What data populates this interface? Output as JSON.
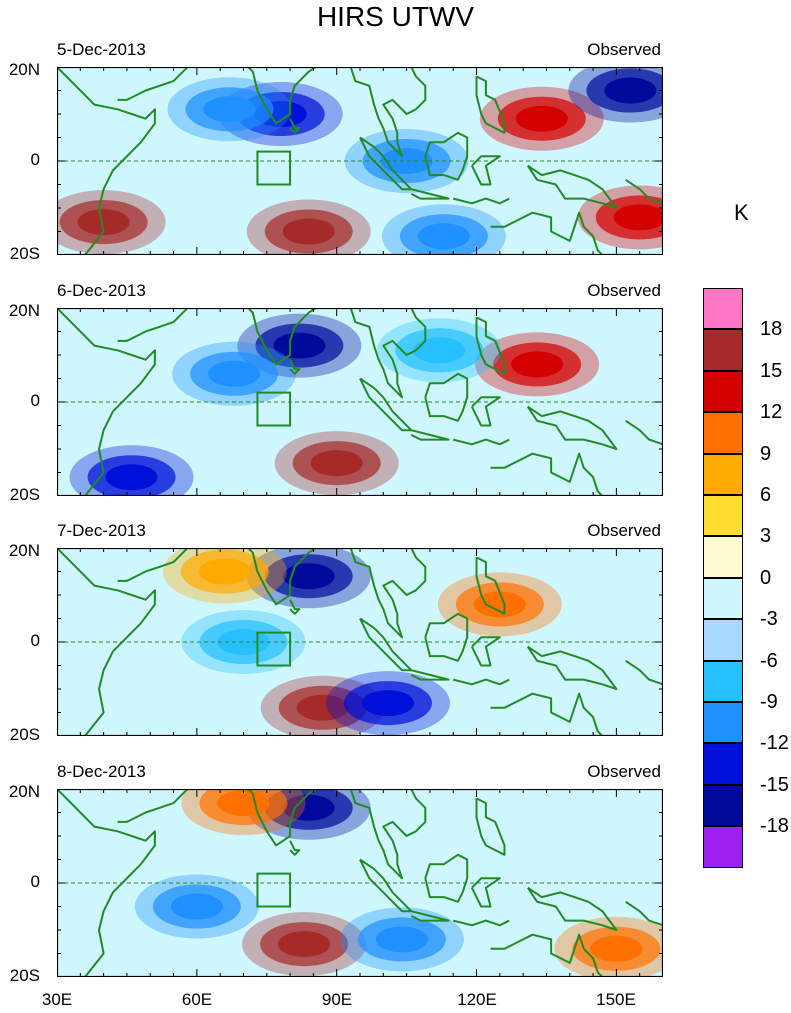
{
  "figure": {
    "title": "HIRS UTWV",
    "unit": "K"
  },
  "chart_data": {
    "type": "heatmap",
    "title": "HIRS UTWV",
    "colorbar_unit": "K",
    "x_axis": {
      "ticks": [
        "30E",
        "60E",
        "90E",
        "120E",
        "150E"
      ],
      "range_deg": [
        30,
        160
      ]
    },
    "y_axis": {
      "ticks": [
        "20N",
        "0",
        "20S"
      ],
      "range_deg": [
        -20,
        20
      ]
    },
    "colorbar": {
      "levels": [
        "18",
        "15",
        "12",
        "9",
        "6",
        "3",
        "0",
        "-3",
        "-6",
        "-9",
        "-12",
        "-15",
        "-18"
      ],
      "colors": [
        "#ff77c4",
        "#a52a2a",
        "#d50000",
        "#ff7000",
        "#ffaa00",
        "#ffde30",
        "#fffbd0",
        "#cff7ff",
        "#a8d8ff",
        "#26bfff",
        "#1e90ff",
        "#0010d8",
        "#000a9a",
        "#a020f0"
      ],
      "value_bins": [
        ">18",
        "15..18",
        "12..15",
        "9..12",
        "6..9",
        "3..6",
        "0..3",
        "-3..0",
        "-6..-3",
        "-9..-6",
        "-12..-9",
        "-15..-12",
        "-18..-15",
        "<-18"
      ]
    },
    "panels": [
      {
        "date": "5-Dec-2013",
        "status": "Observed",
        "features": [
          {
            "lon": 84,
            "lat": -15,
            "level": "15..18"
          },
          {
            "lon": 40,
            "lat": -13,
            "level": "15..18"
          },
          {
            "lon": 134,
            "lat": 9,
            "level": "12..15"
          },
          {
            "lon": 155,
            "lat": -12,
            "level": "12..15"
          },
          {
            "lon": 153,
            "lat": 15,
            "level": "-18..-15"
          },
          {
            "lon": 78,
            "lat": 10,
            "level": "-15..-12"
          },
          {
            "lon": 67,
            "lat": 11,
            "level": "-12..-9"
          },
          {
            "lon": 105,
            "lat": 0,
            "level": "-12..-9"
          },
          {
            "lon": 113,
            "lat": -16,
            "level": "-12..-9"
          }
        ]
      },
      {
        "date": "6-Dec-2013",
        "status": "Observed",
        "features": [
          {
            "lon": 90,
            "lat": -13,
            "level": "15..18"
          },
          {
            "lon": 133,
            "lat": 8,
            "level": "12..15"
          },
          {
            "lon": 82,
            "lat": 12,
            "level": "-18..-15"
          },
          {
            "lon": 68,
            "lat": 6,
            "level": "-12..-9"
          },
          {
            "lon": 112,
            "lat": 11,
            "level": "-9..-6"
          },
          {
            "lon": 46,
            "lat": -16,
            "level": "-15..-12"
          }
        ]
      },
      {
        "date": "7-Dec-2013",
        "status": "Observed",
        "features": [
          {
            "lon": 87,
            "lat": -14,
            "level": "15..18"
          },
          {
            "lon": 84,
            "lat": 14,
            "level": "-18..-15"
          },
          {
            "lon": 101,
            "lat": -13,
            "level": "-15..-12"
          },
          {
            "lon": 125,
            "lat": 8,
            "level": "9..12"
          },
          {
            "lon": 66,
            "lat": 15,
            "level": "6..9"
          },
          {
            "lon": 70,
            "lat": 0,
            "level": "-9..-6"
          }
        ]
      },
      {
        "date": "8-Dec-2013",
        "status": "Observed",
        "features": [
          {
            "lon": 83,
            "lat": -13,
            "level": "15..18"
          },
          {
            "lon": 84,
            "lat": 16,
            "level": "-18..-15"
          },
          {
            "lon": 150,
            "lat": -14,
            "level": "9..12"
          },
          {
            "lon": 70,
            "lat": 17,
            "level": "9..12"
          },
          {
            "lon": 60,
            "lat": -5,
            "level": "-12..-9"
          },
          {
            "lon": 104,
            "lat": -12,
            "level": "-12..-9"
          }
        ]
      }
    ]
  }
}
